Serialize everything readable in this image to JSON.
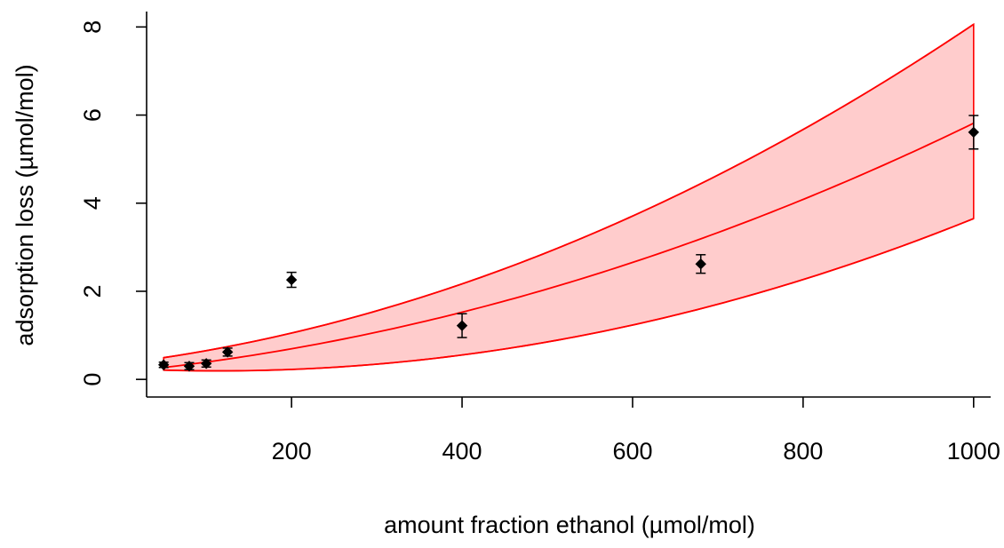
{
  "chart_data": {
    "type": "scatter",
    "title": "",
    "xlabel": "amount fraction ethanol (µmol/mol)",
    "ylabel": "adsorption loss (µmol/mol)",
    "xlim": [
      30,
      1020
    ],
    "ylim": [
      -0.4,
      8.35
    ],
    "x_ticks": [
      200,
      400,
      600,
      800,
      1000
    ],
    "y_ticks": [
      0,
      2,
      4,
      6,
      8
    ],
    "x_tick_labels": [
      "200",
      "400",
      "600",
      "800",
      "1000"
    ],
    "y_tick_labels": [
      "0",
      "2",
      "4",
      "6",
      "8"
    ],
    "grid": false,
    "legend": "none",
    "points": [
      {
        "x": 50,
        "y": 0.33,
        "err": 0.06
      },
      {
        "x": 80,
        "y": 0.3,
        "err": 0.08
      },
      {
        "x": 100,
        "y": 0.36,
        "err": 0.08
      },
      {
        "x": 125,
        "y": 0.62,
        "err": 0.09
      },
      {
        "x": 200,
        "y": 2.26,
        "err": 0.17
      },
      {
        "x": 400,
        "y": 1.22,
        "err": 0.27
      },
      {
        "x": 680,
        "y": 2.62,
        "err": 0.21
      },
      {
        "x": 1000,
        "y": 5.61,
        "err": 0.38
      }
    ],
    "fit": {
      "type": "quadratic",
      "x_range": [
        50,
        1000
      ],
      "center": {
        "c0": 0.165,
        "c1": 0.0019,
        "c2": 3.75e-06
      },
      "upper": {
        "c0": 0.36,
        "c1": 0.0024,
        "c2": 5.3e-06
      },
      "lower": {
        "c0": 0.25,
        "c1": -0.001,
        "c2": 4.4e-06
      }
    },
    "colors": {
      "band_fill": "#ffcccc",
      "fit_line": "#ff0000",
      "points": "#000000"
    }
  }
}
